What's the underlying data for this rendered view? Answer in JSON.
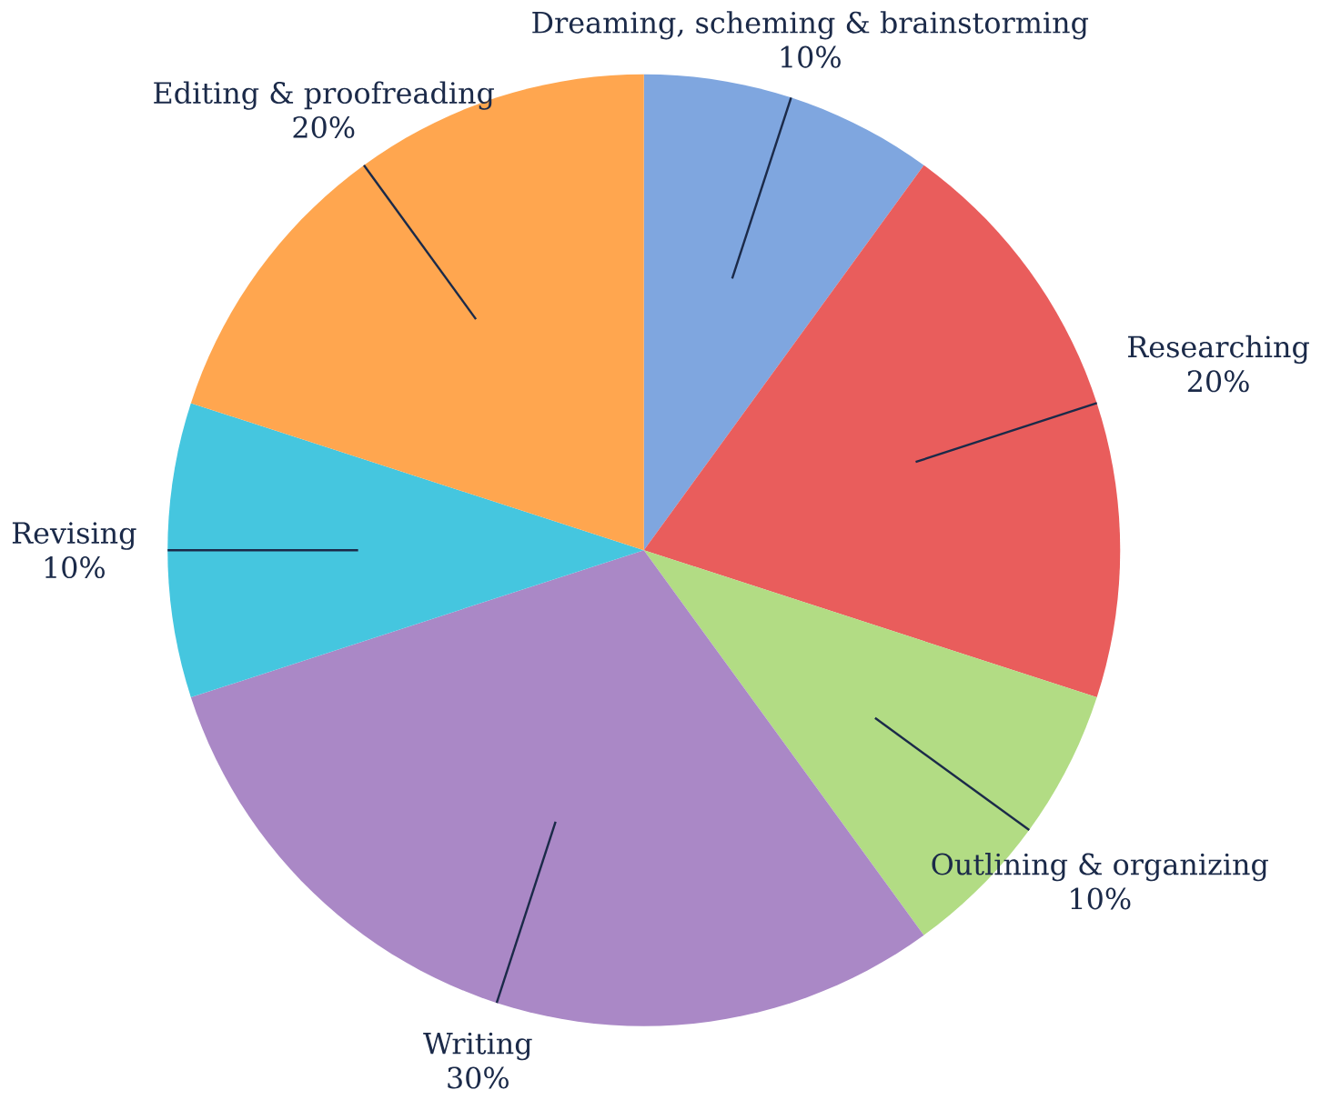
{
  "chart_data": {
    "type": "pie",
    "categories": [
      "Dreaming, scheming & brainstorming",
      "Researching",
      "Outlining & organizing",
      "Writing",
      "Revising",
      "Editing & proofreading"
    ],
    "values": [
      10,
      20,
      10,
      30,
      10,
      20
    ],
    "value_labels": [
      "10%",
      "20%",
      "10%",
      "30%",
      "10%",
      "20%"
    ],
    "colors": [
      "#7fa6df",
      "#e95d5c",
      "#b2dc84",
      "#aa88c6",
      "#45c6df",
      "#ffa64f"
    ]
  }
}
